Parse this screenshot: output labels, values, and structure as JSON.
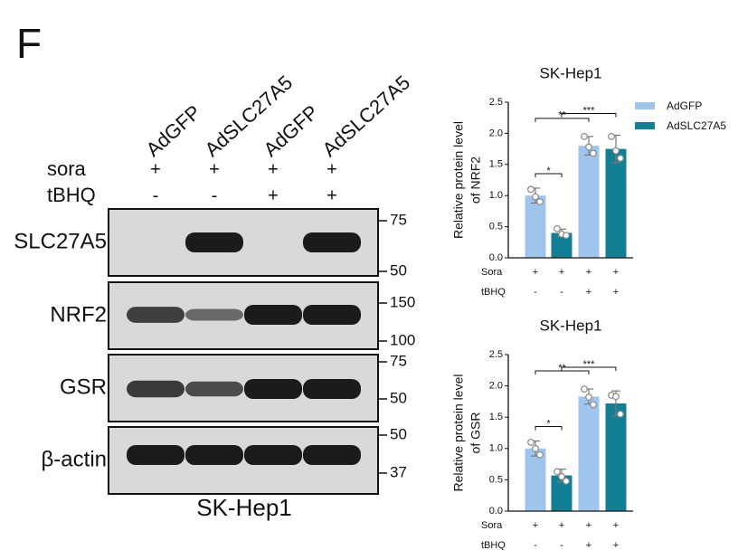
{
  "panel_label": "F",
  "blot": {
    "lanes": [
      "AdGFP",
      "AdSLC27A5",
      "AdGFP",
      "AdSLC27A5"
    ],
    "treatments": [
      {
        "name": "sora",
        "values": [
          "+",
          "+",
          "+",
          "+"
        ]
      },
      {
        "name": "tBHQ",
        "values": [
          "-",
          "-",
          "+",
          "+"
        ]
      }
    ],
    "rows": [
      {
        "name": "SLC27A5",
        "markers": [
          75,
          50
        ]
      },
      {
        "name": "NRF2",
        "markers": [
          150,
          100
        ]
      },
      {
        "name": "GSR",
        "markers": [
          75,
          50
        ]
      },
      {
        "name": "β-actin",
        "markers": [
          50,
          37
        ]
      }
    ],
    "caption": "SK-Hep1"
  },
  "chart_data": [
    {
      "type": "bar",
      "title": "SK-Hep1",
      "ylabel": [
        "Relative protein level",
        "of NRF2"
      ],
      "categories": [
        null,
        null,
        null,
        null
      ],
      "series": [
        {
          "name": "AdGFP",
          "color": "#9fc5ec",
          "values": [
            1.0,
            null,
            1.8,
            null
          ],
          "errors": [
            0.12,
            null,
            0.15,
            null
          ],
          "points": [
            [
              1.1,
              0.98,
              0.9
            ],
            null,
            [
              1.95,
              1.78,
              1.68
            ],
            null
          ]
        },
        {
          "name": "AdSLC27A5",
          "color": "#137f95",
          "values": [
            null,
            0.4,
            null,
            1.75
          ],
          "errors": [
            null,
            0.06,
            null,
            0.22
          ],
          "points": [
            null,
            [
              0.47,
              0.38,
              0.36
            ],
            null,
            [
              1.95,
              1.72,
              1.6
            ]
          ]
        }
      ],
      "ylim": [
        0,
        2.5
      ],
      "yticks": [
        {
          "value": 0,
          "label": "0.0"
        },
        0.5,
        {
          "value": 1,
          "label": "1.0"
        },
        1.5,
        {
          "value": 2,
          "label": "2.0"
        },
        2.5
      ],
      "condition_rows": [
        {
          "name": "Sora",
          "values": [
            "+",
            "+",
            "+",
            "+"
          ]
        },
        {
          "name": "tBHQ",
          "values": [
            "-",
            "-",
            "+",
            "+"
          ]
        }
      ],
      "significance": [
        {
          "label": "*",
          "from": 0,
          "to": 1
        },
        {
          "label": "**",
          "from": 0,
          "to": 2
        },
        {
          "label": "***",
          "from": 1,
          "to": 3
        }
      ],
      "legend": "outside right"
    },
    {
      "type": "bar",
      "title": "SK-Hep1",
      "ylabel": [
        "Relative protein level",
        "of GSR"
      ],
      "categories": [
        null,
        null,
        null,
        null
      ],
      "series": [
        {
          "name": "AdGFP",
          "color": "#9fc5ec",
          "values": [
            1.0,
            null,
            1.83,
            null
          ],
          "errors": [
            0.12,
            null,
            0.12,
            null
          ],
          "points": [
            [
              1.1,
              1.0,
              0.9
            ],
            null,
            [
              1.95,
              1.82,
              1.7
            ],
            null
          ]
        },
        {
          "name": "AdSLC27A5",
          "color": "#137f95",
          "values": [
            null,
            0.57,
            null,
            1.72
          ],
          "errors": [
            null,
            0.1,
            null,
            0.2
          ],
          "points": [
            null,
            [
              0.63,
              0.55,
              0.48
            ],
            null,
            [
              1.85,
              1.83,
              1.55
            ]
          ]
        }
      ],
      "ylim": [
        0,
        2.5
      ],
      "yticks": [
        {
          "value": 0,
          "label": "0.0"
        },
        0.5,
        {
          "value": 1,
          "label": "1.0"
        },
        1.5,
        {
          "value": 2,
          "label": "2.0"
        },
        2.5
      ],
      "condition_rows": [
        {
          "name": "Sora",
          "values": [
            "+",
            "+",
            "+",
            "+"
          ]
        },
        {
          "name": "tBHQ",
          "values": [
            "-",
            "-",
            "+",
            "+"
          ]
        }
      ],
      "significance": [
        {
          "label": "*",
          "from": 0,
          "to": 1
        },
        {
          "label": "**",
          "from": 0,
          "to": 2
        },
        {
          "label": "***",
          "from": 1,
          "to": 3
        }
      ]
    }
  ]
}
